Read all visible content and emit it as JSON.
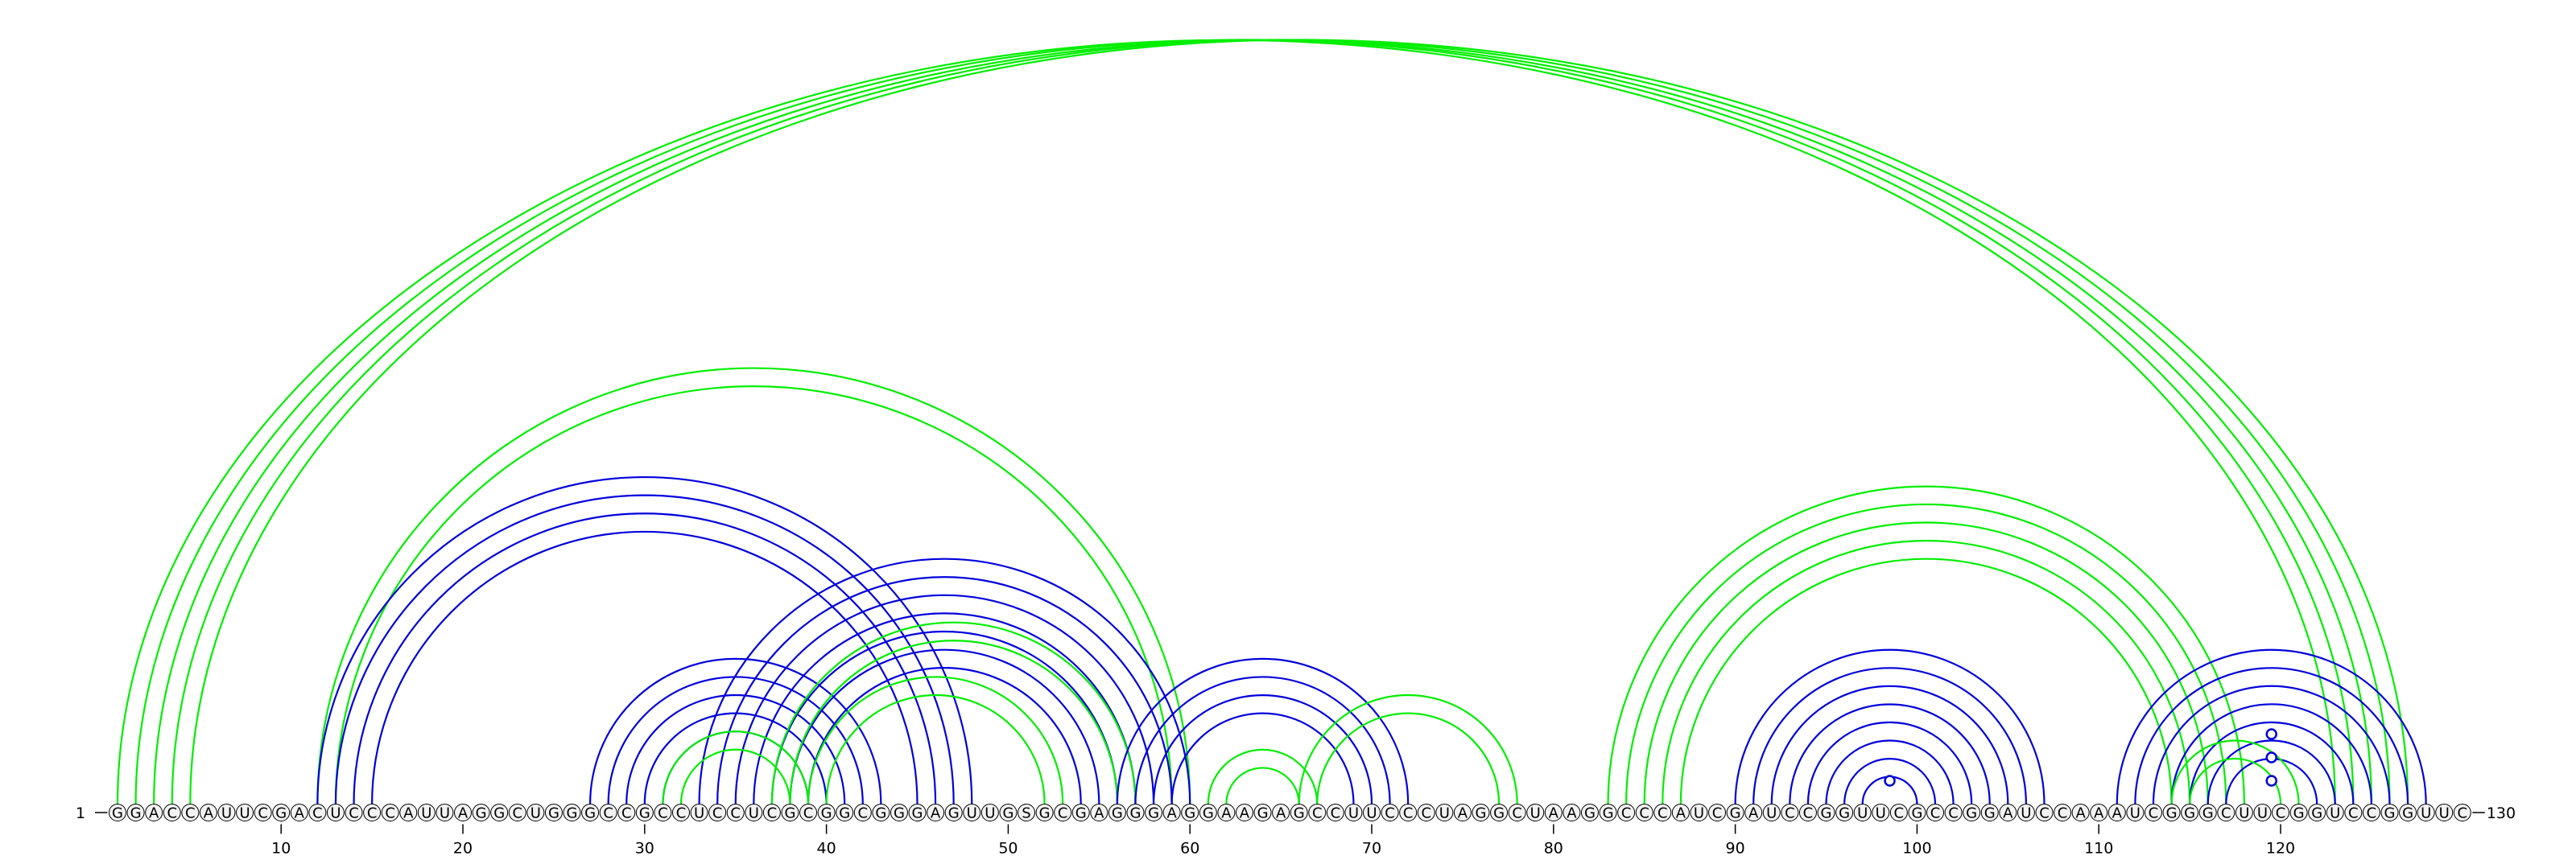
{
  "sequence": "GGACCAUUCGACUCCCAUUAGGCUGGGCCGCCUCCUCGCGGCGGGAGUUGSGCGAGGGAGGAAGAGCCUUCCCUAGGCUAAGGCCCAUCGAUCCGGUUCGCCGGAUCCAAAUCGGGCUUCGGUCCGGUUC",
  "start_label": "1",
  "end_label": "130",
  "tick_labels": [
    "10",
    "20",
    "30",
    "40",
    "50",
    "60",
    "70",
    "80",
    "90",
    "100",
    "110",
    "120"
  ],
  "colors": {
    "green": "#00ee00",
    "blue": "#0000dd"
  },
  "arc_groups": [
    {
      "color": "green",
      "pairs": [
        [
          1,
          123
        ],
        [
          2,
          124
        ],
        [
          3,
          125
        ],
        [
          4,
          126
        ],
        [
          5,
          127
        ]
      ]
    },
    {
      "color": "green",
      "pairs": [
        [
          12,
          60
        ],
        [
          13,
          59
        ]
      ]
    },
    {
      "color": "blue",
      "pairs": [
        [
          13,
          47
        ],
        [
          14,
          46
        ],
        [
          15,
          45
        ],
        [
          12,
          48
        ]
      ]
    },
    {
      "color": "blue",
      "pairs": [
        [
          27,
          43
        ],
        [
          28,
          42
        ],
        [
          29,
          41
        ],
        [
          30,
          40
        ],
        [
          31,
          39
        ]
      ]
    },
    {
      "color": "blue",
      "pairs": [
        [
          33,
          60
        ],
        [
          34,
          59
        ],
        [
          35,
          58
        ],
        [
          36,
          57
        ],
        [
          37,
          56
        ],
        [
          38,
          55
        ],
        [
          39,
          54
        ]
      ]
    },
    {
      "color": "green",
      "pairs": [
        [
          32,
          38
        ],
        [
          31,
          39
        ]
      ]
    },
    {
      "color": "green",
      "pairs": [
        [
          37,
          57
        ],
        [
          38,
          56
        ]
      ]
    },
    {
      "color": "green",
      "pairs": [
        [
          39,
          53
        ],
        [
          40,
          52
        ]
      ]
    },
    {
      "color": "blue",
      "pairs": [
        [
          56,
          72
        ],
        [
          57,
          71
        ],
        [
          58,
          70
        ],
        [
          59,
          69
        ]
      ]
    },
    {
      "color": "green",
      "pairs": [
        [
          61,
          67
        ],
        [
          62,
          66
        ]
      ]
    },
    {
      "color": "green",
      "pairs": [
        [
          66,
          78
        ],
        [
          67,
          77
        ]
      ]
    },
    {
      "color": "green",
      "pairs": [
        [
          83,
          118
        ],
        [
          84,
          117
        ],
        [
          85,
          116
        ],
        [
          86,
          115
        ],
        [
          87,
          114
        ]
      ]
    },
    {
      "color": "blue",
      "pairs": [
        [
          90,
          107
        ],
        [
          91,
          106
        ],
        [
          92,
          105
        ],
        [
          93,
          104
        ],
        [
          94,
          103
        ],
        [
          95,
          102
        ],
        [
          96,
          101
        ],
        [
          97,
          100
        ]
      ]
    },
    {
      "color": "blue",
      "pairs": [
        [
          111,
          128
        ],
        [
          112,
          127
        ],
        [
          113,
          126
        ],
        [
          114,
          125
        ],
        [
          115,
          124
        ],
        [
          116,
          123
        ],
        [
          117,
          122
        ]
      ]
    },
    {
      "color": "green",
      "pairs": [
        [
          114,
          121
        ],
        [
          115,
          120
        ]
      ]
    }
  ],
  "nodes": [
    {
      "color": "blue",
      "pos": 98.5,
      "level": 1
    },
    {
      "color": "blue",
      "pos": 119.5,
      "level": 1
    },
    {
      "color": "blue",
      "pos": 119.5,
      "level": 2
    },
    {
      "color": "blue",
      "pos": 119.5,
      "level": 3
    }
  ]
}
